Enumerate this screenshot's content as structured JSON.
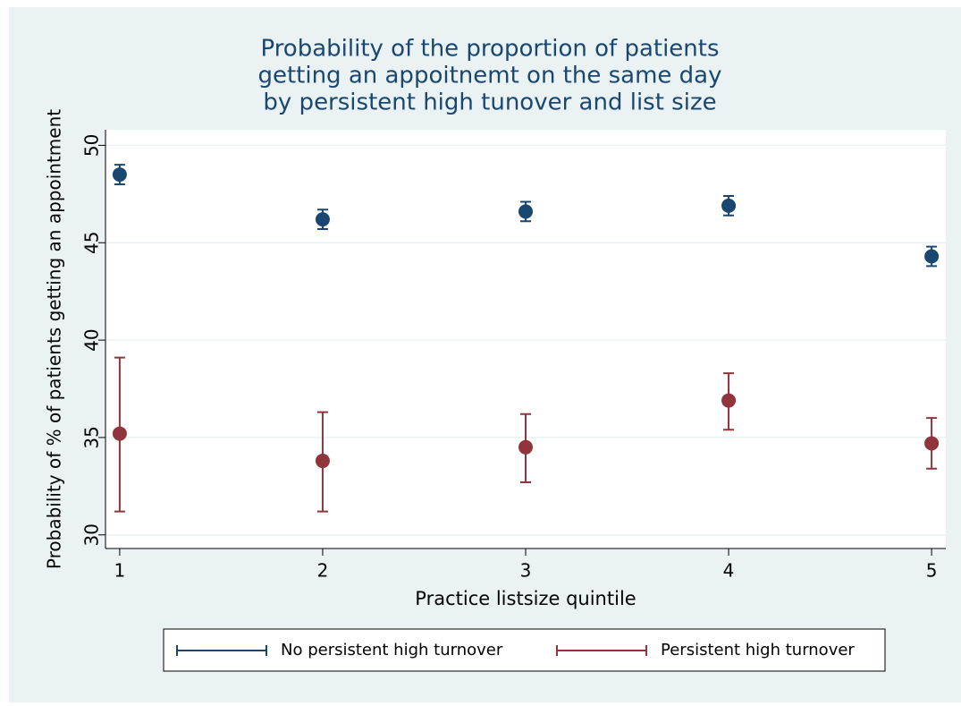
{
  "chart_data": {
    "type": "errorbar",
    "title": [
      "Probability of the proportion of patients",
      "getting an appoitnemt on the same day",
      "by persistent high tunover and list size"
    ],
    "x_label": "Practice listsize quintile",
    "y_label": "Probability of % of patients getting an appointment",
    "x": [
      1,
      2,
      3,
      4,
      5
    ],
    "series": [
      {
        "name": "No persistent high turnover",
        "color": "#1a476f",
        "values": [
          48.5,
          46.2,
          46.6,
          46.9,
          44.3
        ],
        "lower": [
          48.0,
          45.7,
          46.1,
          46.4,
          43.8
        ],
        "upper": [
          49.0,
          46.7,
          47.1,
          47.4,
          44.8
        ]
      },
      {
        "name": "Persistent high turnover",
        "color": "#90353b",
        "values": [
          35.2,
          33.8,
          34.5,
          36.9,
          34.7
        ],
        "lower": [
          31.2,
          31.2,
          32.7,
          35.4,
          33.4
        ],
        "upper": [
          39.1,
          36.3,
          36.2,
          38.3,
          36.0
        ]
      }
    ],
    "xlim": [
      0.93,
      5.07
    ],
    "xticks": [
      1,
      2,
      3,
      4,
      5
    ],
    "ylim": [
      29.3,
      50.8
    ],
    "yticks": [
      30,
      35,
      40,
      45,
      50
    ],
    "grid": true,
    "legend": "bottom"
  }
}
